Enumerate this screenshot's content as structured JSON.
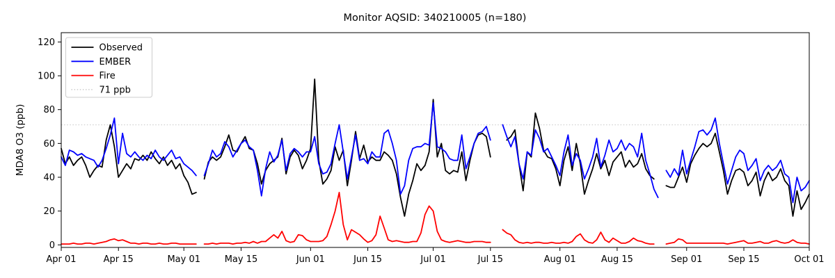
{
  "title": "Monitor AQSID: 340210005 (n=180)",
  "chart_data": {
    "type": "line",
    "title": "Monitor AQSID: 340210005 (n=180)",
    "ylabel": "MDA8 O3 (ppb)",
    "xlabel": "",
    "ylim": [
      -1.5,
      125.5
    ],
    "yticks": [
      0,
      20,
      40,
      60,
      80,
      100,
      120
    ],
    "n_days": 184,
    "x_start": "Apr 01",
    "x_end": "Oct 01",
    "grid": "off",
    "legend_position": "upper-left",
    "x_ticks": [
      {
        "label": "Apr 01",
        "day": 0
      },
      {
        "label": "Apr 15",
        "day": 14
      },
      {
        "label": "May 01",
        "day": 30
      },
      {
        "label": "May 15",
        "day": 44
      },
      {
        "label": "Jun 01",
        "day": 61
      },
      {
        "label": "Jun 15",
        "day": 75
      },
      {
        "label": "Jul 01",
        "day": 91
      },
      {
        "label": "Jul 15",
        "day": 105
      },
      {
        "label": "Aug 01",
        "day": 122
      },
      {
        "label": "Aug 15",
        "day": 136
      },
      {
        "label": "Sep 01",
        "day": 153
      },
      {
        "label": "Sep 15",
        "day": 167
      },
      {
        "label": "Oct 01",
        "day": 183
      }
    ],
    "threshold": {
      "label": "71 ppb",
      "value": 71,
      "color": "#d3d3d3",
      "style": "dotted"
    },
    "series": [
      {
        "name": "Observed",
        "color": "#000000",
        "style": "solid",
        "values": [
          57,
          48,
          52,
          47,
          50,
          52,
          47,
          40,
          44,
          47,
          46,
          62,
          71,
          58,
          40,
          44,
          48,
          45,
          51,
          50,
          53,
          50,
          55,
          51,
          48,
          52,
          47,
          50,
          45,
          48,
          41,
          37,
          30,
          31,
          null,
          39,
          49,
          52,
          50,
          52,
          58,
          65,
          56,
          55,
          60,
          64,
          57,
          56,
          48,
          36,
          44,
          48,
          50,
          52,
          63,
          42,
          52,
          56,
          53,
          45,
          50,
          57,
          98,
          50,
          36,
          39,
          44,
          58,
          50,
          56,
          35,
          50,
          67,
          51,
          59,
          49,
          52,
          50,
          50,
          55,
          53,
          50,
          42,
          28,
          17,
          30,
          38,
          48,
          44,
          47,
          55,
          86,
          52,
          60,
          44,
          42,
          44,
          43,
          55,
          38,
          50,
          60,
          65,
          66,
          64,
          52,
          null,
          null,
          null,
          62,
          64,
          68,
          48,
          32,
          55,
          52,
          78,
          69,
          56,
          52,
          51,
          45,
          35,
          50,
          58,
          44,
          60,
          48,
          30,
          38,
          45,
          54,
          45,
          50,
          41,
          49,
          52,
          55,
          46,
          50,
          46,
          48,
          54,
          45,
          41,
          39,
          null,
          null,
          35,
          34,
          34,
          40,
          46,
          37,
          48,
          53,
          57,
          60,
          58,
          60,
          66,
          55,
          44,
          30,
          38,
          44,
          45,
          43,
          35,
          38,
          43,
          29,
          38,
          43,
          38,
          40,
          45,
          38,
          35,
          17,
          32,
          21,
          25,
          30
        ]
      },
      {
        "name": "EMBER",
        "color": "#0000ff",
        "style": "solid",
        "values": [
          52,
          47,
          56,
          55,
          53,
          54,
          52,
          51,
          50,
          46,
          50,
          57,
          65,
          75,
          48,
          66,
          54,
          52,
          55,
          52,
          50,
          53,
          51,
          56,
          52,
          50,
          53,
          56,
          51,
          52,
          48,
          46,
          44,
          41,
          null,
          41,
          48,
          56,
          52,
          54,
          61,
          58,
          52,
          56,
          60,
          62,
          58,
          56,
          44,
          29,
          45,
          55,
          49,
          53,
          62,
          44,
          54,
          57,
          55,
          52,
          55,
          55,
          64,
          48,
          42,
          43,
          48,
          60,
          71,
          55,
          39,
          52,
          65,
          50,
          51,
          48,
          55,
          52,
          52,
          66,
          68,
          60,
          50,
          30,
          35,
          50,
          57,
          58,
          58,
          60,
          59,
          84,
          58,
          57,
          55,
          51,
          50,
          50,
          65,
          45,
          52,
          60,
          66,
          67,
          70,
          62,
          null,
          null,
          71,
          64,
          58,
          64,
          48,
          39,
          55,
          53,
          68,
          63,
          55,
          57,
          52,
          47,
          41,
          55,
          65,
          47,
          54,
          50,
          39,
          45,
          52,
          63,
          46,
          53,
          62,
          55,
          57,
          62,
          56,
          60,
          58,
          52,
          66,
          50,
          42,
          33,
          28,
          null,
          44,
          40,
          45,
          41,
          56,
          42,
          50,
          58,
          67,
          68,
          65,
          68,
          75,
          60,
          48,
          36,
          44,
          52,
          56,
          54,
          44,
          47,
          51,
          38,
          44,
          47,
          44,
          46,
          50,
          42,
          40,
          25,
          40,
          32,
          34,
          38
        ]
      },
      {
        "name": "Fire",
        "color": "#ff0000",
        "style": "solid",
        "values": [
          0.5,
          0.5,
          0.5,
          1,
          0.5,
          0.5,
          1,
          1,
          0.5,
          1,
          1.5,
          2,
          3,
          3.5,
          2.5,
          3,
          2,
          1,
          1,
          0.5,
          1,
          1,
          0.5,
          0.5,
          1,
          0.5,
          0.5,
          1,
          1,
          0.5,
          0.5,
          0.5,
          0.5,
          0.5,
          null,
          0.5,
          0.5,
          1,
          0.5,
          1,
          1,
          1,
          0.5,
          1,
          1,
          1.5,
          1,
          2,
          1,
          2,
          2,
          4,
          6,
          4,
          8,
          2.5,
          1.5,
          2,
          6,
          5.5,
          3,
          2,
          2,
          2,
          2.5,
          5,
          12,
          20,
          31,
          12,
          3,
          9,
          7.5,
          6,
          3.5,
          1.5,
          2.5,
          6,
          17,
          10,
          3,
          2,
          2.5,
          2,
          1.5,
          1.5,
          2,
          2,
          7,
          18,
          23,
          20,
          8,
          3,
          2,
          1.5,
          2,
          2.5,
          2,
          1.5,
          1.5,
          2,
          2,
          2,
          1.5,
          1.5,
          null,
          null,
          9,
          7,
          6,
          3,
          1.5,
          1,
          1.5,
          1,
          1.5,
          1.5,
          1,
          1,
          1.5,
          1,
          1,
          1.5,
          1,
          2,
          5,
          6.5,
          3,
          1.5,
          1,
          3,
          7.5,
          3,
          1.5,
          4,
          2.5,
          1,
          1,
          2,
          4,
          2.5,
          2,
          1,
          0.5,
          0.5,
          null,
          null,
          0.5,
          1,
          1.5,
          3.5,
          3,
          1,
          1,
          1,
          1,
          1,
          1,
          1,
          1,
          1,
          1,
          0.5,
          1,
          1.5,
          2,
          2.5,
          1,
          1,
          1.5,
          2,
          1,
          1,
          2,
          2.5,
          1.5,
          1,
          1.5,
          3,
          1.5,
          1,
          1,
          0.5
        ]
      }
    ],
    "legend": [
      "Observed",
      "EMBER",
      "Fire",
      "71 ppb"
    ]
  }
}
